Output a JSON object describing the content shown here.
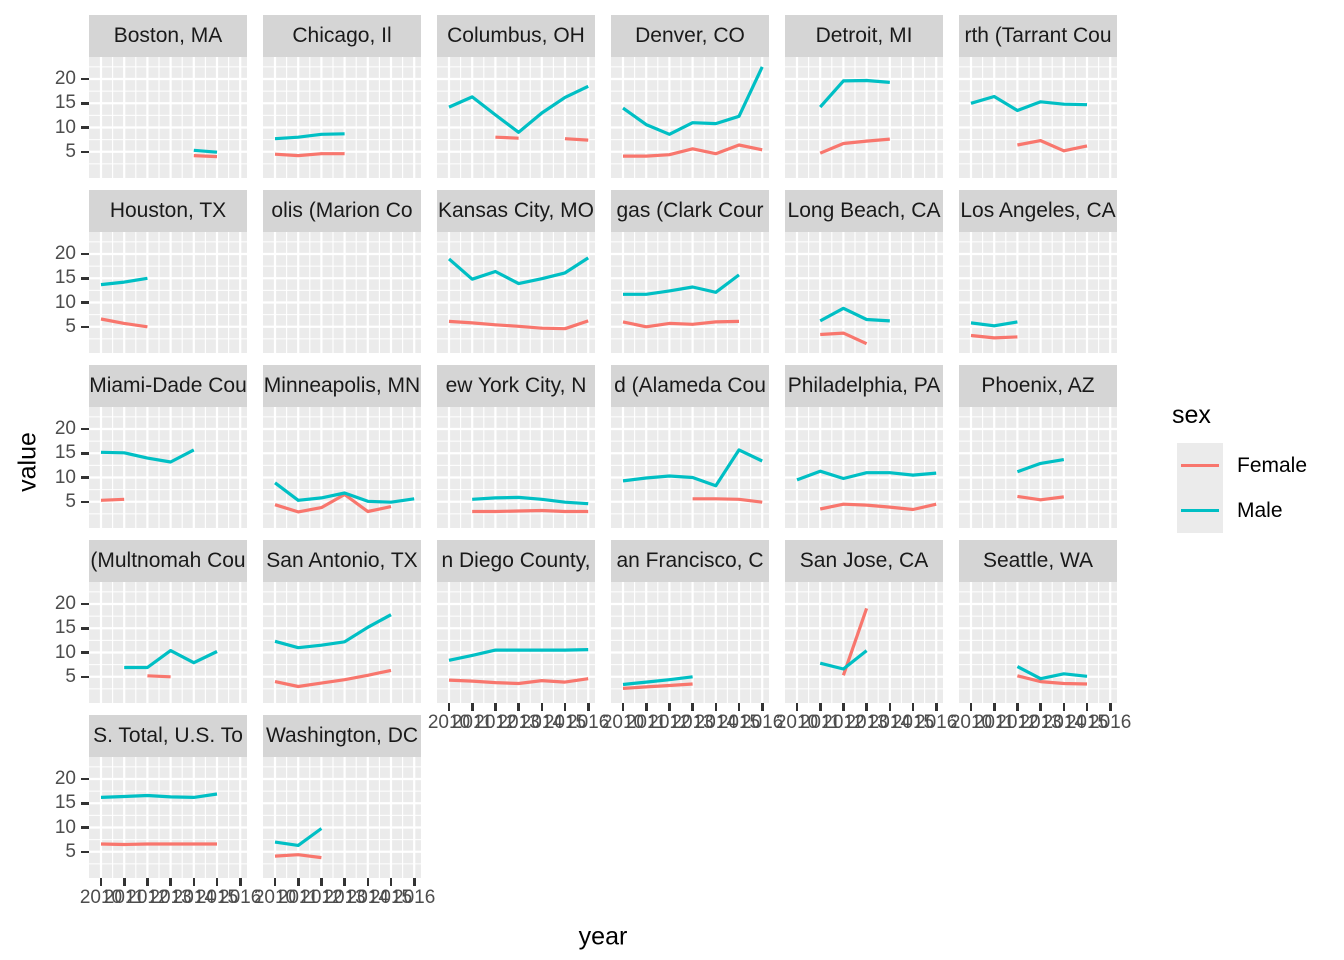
{
  "figure": {
    "x_axis": {
      "title": "year",
      "ticks": [
        2010,
        2011,
        2012,
        2013,
        2014,
        2015,
        2016
      ]
    },
    "y_axis": {
      "title": "value",
      "ticks": [
        5,
        10,
        15,
        20
      ]
    },
    "legend": {
      "title": "sex",
      "entries": [
        {
          "label": "Female",
          "color": "#F8766D"
        },
        {
          "label": "Male",
          "color": "#00BFC4"
        }
      ]
    },
    "style": {
      "panel_background": "#EBEBEB",
      "gridline_color": "#FFFFFF",
      "strip_background": "#D5D5D5",
      "axis_text_color": "#4D4D4D",
      "female_color": "#F8766D",
      "male_color": "#00BFC4"
    }
  },
  "chart_data": {
    "type": "line",
    "title": "",
    "xlabel": "year",
    "ylabel": "value",
    "x_ticks": [
      2010,
      2011,
      2012,
      2013,
      2014,
      2015,
      2016
    ],
    "y_ticks": [
      5,
      10,
      15,
      20
    ],
    "ylim": [
      0,
      24.5
    ],
    "grid": true,
    "legend_position": "right",
    "series_names": [
      "Female",
      "Male"
    ],
    "facets": [
      {
        "title": "Boston, MA",
        "female": [
          [
            2014,
            4.2
          ],
          [
            2015,
            4.0
          ]
        ],
        "male": [
          [
            2014,
            5.3
          ],
          [
            2015,
            4.9
          ]
        ]
      },
      {
        "title": "Chicago, Il",
        "female": [
          [
            2010,
            4.5
          ],
          [
            2011,
            4.2
          ],
          [
            2012,
            4.6
          ],
          [
            2013,
            4.6
          ]
        ],
        "male": [
          [
            2010,
            7.7
          ],
          [
            2011,
            8.0
          ],
          [
            2012,
            8.6
          ],
          [
            2013,
            8.7
          ]
        ]
      },
      {
        "title": "Columbus, OH",
        "female": [
          [
            2012,
            8.0
          ],
          [
            2013,
            7.8
          ],
          [
            2015,
            7.7
          ],
          [
            2016,
            7.4
          ]
        ],
        "male": [
          [
            2010,
            14.2
          ],
          [
            2011,
            16.3
          ],
          [
            2012,
            12.6
          ],
          [
            2013,
            9.0
          ],
          [
            2014,
            13.0
          ],
          [
            2015,
            16.2
          ],
          [
            2016,
            18.5
          ]
        ]
      },
      {
        "title": "Denver, CO",
        "female": [
          [
            2010,
            4.1
          ],
          [
            2011,
            4.1
          ],
          [
            2012,
            4.4
          ],
          [
            2013,
            5.6
          ],
          [
            2014,
            4.6
          ],
          [
            2015,
            6.4
          ],
          [
            2016,
            5.4
          ]
        ],
        "male": [
          [
            2010,
            14.0
          ],
          [
            2011,
            10.6
          ],
          [
            2012,
            8.6
          ],
          [
            2013,
            11.0
          ],
          [
            2014,
            10.8
          ],
          [
            2015,
            12.3
          ],
          [
            2016,
            22.5
          ]
        ]
      },
      {
        "title": "Detroit, MI",
        "female": [
          [
            2011,
            4.7
          ],
          [
            2012,
            6.7
          ],
          [
            2013,
            7.2
          ],
          [
            2014,
            7.6
          ]
        ],
        "male": [
          [
            2011,
            14.2
          ],
          [
            2012,
            19.6
          ],
          [
            2013,
            19.7
          ],
          [
            2014,
            19.3
          ]
        ]
      },
      {
        "title": "rth (Tarrant Cou",
        "female": [
          [
            2012,
            6.4
          ],
          [
            2013,
            7.3
          ],
          [
            2014,
            5.2
          ],
          [
            2015,
            6.2
          ]
        ],
        "male": [
          [
            2010,
            15.0
          ],
          [
            2011,
            16.4
          ],
          [
            2012,
            13.5
          ],
          [
            2013,
            15.3
          ],
          [
            2014,
            14.8
          ],
          [
            2015,
            14.7
          ]
        ]
      },
      {
        "title": "Houston, TX",
        "female": [
          [
            2010,
            6.6
          ],
          [
            2011,
            5.7
          ],
          [
            2012,
            5.0
          ]
        ],
        "male": [
          [
            2010,
            13.7
          ],
          [
            2011,
            14.2
          ],
          [
            2012,
            15.0
          ]
        ]
      },
      {
        "title": "olis (Marion Co",
        "female": [],
        "male": []
      },
      {
        "title": "Kansas City, MO",
        "female": [
          [
            2010,
            6.1
          ],
          [
            2011,
            5.8
          ],
          [
            2012,
            5.4
          ],
          [
            2013,
            5.1
          ],
          [
            2014,
            4.7
          ],
          [
            2015,
            4.6
          ],
          [
            2016,
            6.2
          ]
        ],
        "male": [
          [
            2010,
            19.0
          ],
          [
            2011,
            14.8
          ],
          [
            2012,
            16.4
          ],
          [
            2013,
            13.9
          ],
          [
            2014,
            14.9
          ],
          [
            2015,
            16.1
          ],
          [
            2016,
            19.2
          ]
        ]
      },
      {
        "title": "gas (Clark Cour",
        "female": [
          [
            2010,
            6.0
          ],
          [
            2011,
            5.0
          ],
          [
            2012,
            5.7
          ],
          [
            2013,
            5.5
          ],
          [
            2014,
            6.0
          ],
          [
            2015,
            6.1
          ]
        ],
        "male": [
          [
            2010,
            11.7
          ],
          [
            2011,
            11.7
          ],
          [
            2012,
            12.4
          ],
          [
            2013,
            13.2
          ],
          [
            2014,
            12.1
          ],
          [
            2015,
            15.7
          ]
        ]
      },
      {
        "title": "Long Beach, CA",
        "female": [
          [
            2011,
            3.4
          ],
          [
            2012,
            3.7
          ],
          [
            2013,
            1.5
          ]
        ],
        "male": [
          [
            2011,
            6.2
          ],
          [
            2012,
            8.8
          ],
          [
            2013,
            6.5
          ],
          [
            2014,
            6.2
          ]
        ]
      },
      {
        "title": "Los Angeles, CA",
        "female": [
          [
            2010,
            3.2
          ],
          [
            2011,
            2.7
          ],
          [
            2012,
            2.9
          ]
        ],
        "male": [
          [
            2010,
            5.8
          ],
          [
            2011,
            5.2
          ],
          [
            2012,
            6.0
          ]
        ]
      },
      {
        "title": "Miami-Dade Cou",
        "female": [
          [
            2010,
            5.3
          ],
          [
            2011,
            5.5
          ]
        ],
        "male": [
          [
            2010,
            15.2
          ],
          [
            2011,
            15.1
          ],
          [
            2012,
            14.0
          ],
          [
            2013,
            13.2
          ],
          [
            2014,
            15.7
          ]
        ]
      },
      {
        "title": "Minneapolis, MN",
        "female": [
          [
            2010,
            4.4
          ],
          [
            2011,
            2.9
          ],
          [
            2012,
            3.8
          ],
          [
            2013,
            6.5
          ],
          [
            2014,
            3.0
          ],
          [
            2015,
            4.0
          ]
        ],
        "male": [
          [
            2010,
            8.9
          ],
          [
            2011,
            5.3
          ],
          [
            2012,
            5.8
          ],
          [
            2013,
            6.8
          ],
          [
            2014,
            5.1
          ],
          [
            2015,
            4.9
          ],
          [
            2016,
            5.6
          ]
        ]
      },
      {
        "title": "ew York City, N",
        "female": [
          [
            2011,
            3.0
          ],
          [
            2012,
            3.0
          ],
          [
            2013,
            3.1
          ],
          [
            2014,
            3.2
          ],
          [
            2015,
            3.0
          ],
          [
            2016,
            3.0
          ]
        ],
        "male": [
          [
            2011,
            5.5
          ],
          [
            2012,
            5.8
          ],
          [
            2013,
            5.9
          ],
          [
            2014,
            5.5
          ],
          [
            2015,
            4.9
          ],
          [
            2016,
            4.6
          ]
        ]
      },
      {
        "title": "d (Alameda Cou",
        "female": [
          [
            2013,
            5.6
          ],
          [
            2014,
            5.6
          ],
          [
            2015,
            5.5
          ],
          [
            2016,
            4.9
          ]
        ],
        "male": [
          [
            2010,
            9.3
          ],
          [
            2011,
            9.9
          ],
          [
            2012,
            10.3
          ],
          [
            2013,
            10.0
          ],
          [
            2014,
            8.3
          ],
          [
            2015,
            15.7
          ],
          [
            2016,
            13.4
          ]
        ]
      },
      {
        "title": "Philadelphia, PA",
        "female": [
          [
            2011,
            3.5
          ],
          [
            2012,
            4.5
          ],
          [
            2013,
            4.3
          ],
          [
            2014,
            3.9
          ],
          [
            2015,
            3.4
          ],
          [
            2016,
            4.5
          ]
        ],
        "male": [
          [
            2010,
            9.5
          ],
          [
            2011,
            11.3
          ],
          [
            2012,
            9.8
          ],
          [
            2013,
            11.0
          ],
          [
            2014,
            11.0
          ],
          [
            2015,
            10.5
          ],
          [
            2016,
            10.9
          ]
        ]
      },
      {
        "title": "Phoenix, AZ",
        "female": [
          [
            2012,
            6.1
          ],
          [
            2013,
            5.4
          ],
          [
            2014,
            6.0
          ]
        ],
        "male": [
          [
            2012,
            11.2
          ],
          [
            2013,
            12.9
          ],
          [
            2014,
            13.7
          ]
        ]
      },
      {
        "title": "(Multnomah Cou",
        "female": [
          [
            2012,
            5.2
          ],
          [
            2013,
            5.0
          ]
        ],
        "male": [
          [
            2011,
            6.9
          ],
          [
            2012,
            6.9
          ],
          [
            2013,
            10.4
          ],
          [
            2014,
            7.9
          ],
          [
            2015,
            10.2
          ]
        ]
      },
      {
        "title": "San Antonio, TX",
        "female": [
          [
            2010,
            4.0
          ],
          [
            2011,
            3.0
          ],
          [
            2012,
            3.7
          ],
          [
            2013,
            4.4
          ],
          [
            2014,
            5.3
          ],
          [
            2015,
            6.3
          ]
        ],
        "male": [
          [
            2010,
            12.3
          ],
          [
            2011,
            11.0
          ],
          [
            2012,
            11.5
          ],
          [
            2013,
            12.2
          ],
          [
            2014,
            15.2
          ],
          [
            2015,
            17.8
          ]
        ]
      },
      {
        "title": "n Diego County,",
        "female": [
          [
            2010,
            4.3
          ],
          [
            2011,
            4.1
          ],
          [
            2012,
            3.8
          ],
          [
            2013,
            3.6
          ],
          [
            2014,
            4.2
          ],
          [
            2015,
            3.9
          ],
          [
            2016,
            4.6
          ]
        ],
        "male": [
          [
            2010,
            8.4
          ],
          [
            2011,
            9.4
          ],
          [
            2012,
            10.5
          ],
          [
            2013,
            10.5
          ],
          [
            2014,
            10.5
          ],
          [
            2015,
            10.5
          ],
          [
            2016,
            10.6
          ]
        ]
      },
      {
        "title": "an Francisco, C",
        "female": [
          [
            2010,
            2.6
          ],
          [
            2011,
            2.9
          ],
          [
            2012,
            3.2
          ],
          [
            2013,
            3.5
          ]
        ],
        "male": [
          [
            2010,
            3.4
          ],
          [
            2011,
            3.9
          ],
          [
            2012,
            4.4
          ],
          [
            2013,
            5.0
          ]
        ]
      },
      {
        "title": "San Jose, CA",
        "female": [
          [
            2012,
            5.3
          ],
          [
            2013,
            19.1
          ]
        ],
        "male": [
          [
            2011,
            7.8
          ],
          [
            2012,
            6.6
          ],
          [
            2013,
            10.4
          ]
        ]
      },
      {
        "title": "Seattle, WA",
        "female": [
          [
            2012,
            5.2
          ],
          [
            2013,
            4.0
          ],
          [
            2014,
            3.6
          ],
          [
            2015,
            3.5
          ]
        ],
        "male": [
          [
            2012,
            7.1
          ],
          [
            2013,
            4.6
          ],
          [
            2014,
            5.6
          ],
          [
            2015,
            5.1
          ]
        ]
      },
      {
        "title": "S. Total, U.S. To",
        "female": [
          [
            2010,
            6.6
          ],
          [
            2011,
            6.5
          ],
          [
            2012,
            6.6
          ],
          [
            2013,
            6.6
          ],
          [
            2014,
            6.6
          ],
          [
            2015,
            6.6
          ]
        ],
        "male": [
          [
            2010,
            16.2
          ],
          [
            2011,
            16.4
          ],
          [
            2012,
            16.6
          ],
          [
            2013,
            16.3
          ],
          [
            2014,
            16.2
          ],
          [
            2015,
            16.9
          ]
        ]
      },
      {
        "title": "Washington, DC",
        "female": [
          [
            2010,
            4.1
          ],
          [
            2011,
            4.4
          ],
          [
            2012,
            3.8
          ]
        ],
        "male": [
          [
            2010,
            7.0
          ],
          [
            2011,
            6.3
          ],
          [
            2012,
            9.8
          ]
        ]
      }
    ]
  }
}
